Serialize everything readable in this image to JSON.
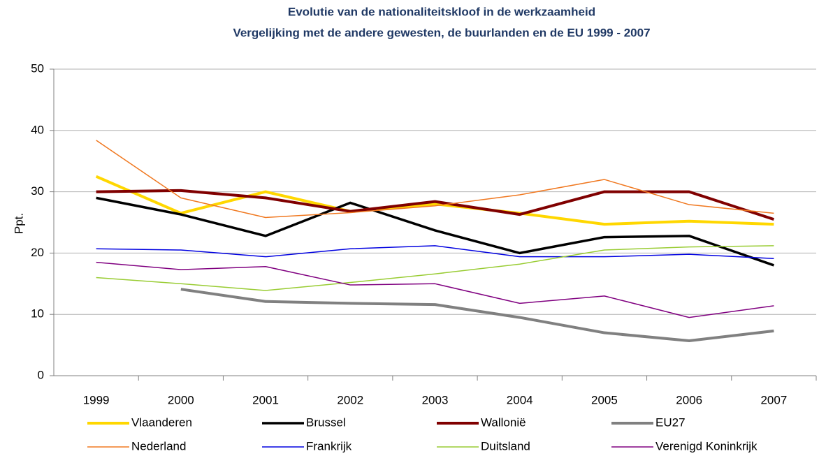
{
  "chart_data": {
    "type": "line",
    "title": "Evolutie van de nationaliteitskloof in de werkzaamheid",
    "subtitle": "Vergelijking met de andere gewesten, de buurlanden  en de EU 1999 - 2007",
    "y_label": "Ppt.",
    "categories": [
      "1999",
      "2000",
      "2001",
      "2002",
      "2003",
      "2004",
      "2005",
      "2006",
      "2007"
    ],
    "ylim": [
      0,
      50
    ],
    "yticks": [
      0,
      10,
      20,
      30,
      40,
      50
    ],
    "grid": true,
    "series": [
      {
        "name": "Vlaanderen",
        "color": "#ffd700",
        "width": 4,
        "values": [
          32.5,
          26.5,
          30,
          26.8,
          28,
          26.5,
          24.7,
          25.2,
          24.7
        ]
      },
      {
        "name": "Brussel",
        "color": "#000000",
        "width": 3.5,
        "values": [
          29,
          26.3,
          22.8,
          28.2,
          23.7,
          20,
          22.6,
          22.8,
          18
        ]
      },
      {
        "name": "Wallonië",
        "color": "#800000",
        "width": 4,
        "values": [
          30,
          30.2,
          29,
          26.8,
          28.4,
          26.3,
          30,
          30,
          25.5
        ]
      },
      {
        "name": "EU27",
        "color": "#808080",
        "width": 4,
        "values": [
          null,
          14.1,
          12.1,
          11.8,
          11.6,
          9.5,
          7,
          5.7,
          7.3
        ]
      },
      {
        "name": "Nederland",
        "color": "#f07820",
        "width": 1.5,
        "values": [
          38.4,
          29,
          25.8,
          26.6,
          27.7,
          29.5,
          32,
          27.9,
          26.5
        ]
      },
      {
        "name": "Frankrijk",
        "color": "#0000e0",
        "width": 1.5,
        "values": [
          20.7,
          20.5,
          19.4,
          20.7,
          21.2,
          19.4,
          19.4,
          19.8,
          19.1
        ]
      },
      {
        "name": "Duitsland",
        "color": "#99cc33",
        "width": 1.5,
        "values": [
          16,
          15,
          13.9,
          15.2,
          16.6,
          18.2,
          20.5,
          21,
          21.2
        ]
      },
      {
        "name": "Verenigd Koninkrijk",
        "color": "#800080",
        "width": 1.5,
        "values": [
          18.5,
          17.3,
          17.8,
          14.8,
          15,
          11.8,
          13,
          9.5,
          11.4
        ]
      }
    ]
  }
}
